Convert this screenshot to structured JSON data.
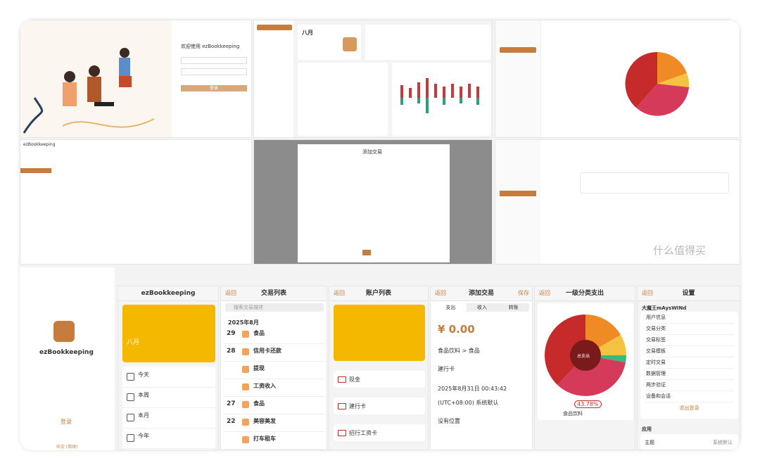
{
  "top_panels": {
    "login_title": "欢迎使用 ezBookkeeping",
    "login_button": "登录",
    "month": "八月",
    "dialog_title": "添加交易",
    "brand": "ezBookkeeping"
  },
  "login_screen": {
    "app_name": "ezBookkeeping",
    "login": "登录",
    "language": "中文 (简体)"
  },
  "home_screen": {
    "title": "ezBookkeeping",
    "month": "八月",
    "items": [
      "今天",
      "本周",
      "本月",
      "今年"
    ]
  },
  "transactions_screen": {
    "back": "返回",
    "title": "交易列表",
    "search": "搜索交易描述",
    "month": "2025年8月",
    "rows": [
      {
        "day": 29,
        "name": "食品"
      },
      {
        "day": 28,
        "name": "信用卡还款"
      },
      {
        "day": null,
        "name": "提现"
      },
      {
        "day": null,
        "name": "工资收入"
      },
      {
        "day": 27,
        "name": "食品"
      },
      {
        "day": 22,
        "name": "美容美发"
      },
      {
        "day": null,
        "name": "打车租车"
      }
    ]
  },
  "accounts_screen": {
    "back": "返回",
    "title": "账户列表",
    "accounts": [
      "现金",
      "建行卡",
      "招行工资卡"
    ]
  },
  "add_screen": {
    "back": "返回",
    "title": "添加交易",
    "save": "保存",
    "tabs": [
      "支出",
      "收入",
      "转账"
    ],
    "amount": "¥ 0.00",
    "category": "食品饮料 > 食品",
    "account": "建行卡",
    "time": "2025年8月31日 00:43:42",
    "timezone": "(UTC+08:00) 系统默认",
    "location": "没有位置"
  },
  "chart_screen": {
    "back": "返回",
    "title": "一级分类支出",
    "center": "总支出",
    "percent": "43.78%",
    "category": "食品饮料"
  },
  "settings_screen": {
    "back": "返回",
    "title": "设置",
    "user": "大魔王mAysWINd",
    "items": [
      "用户信息",
      "交易分类",
      "交易标签",
      "交易模板",
      "定时交易",
      "数据管理",
      "两步验证",
      "设备和会话"
    ],
    "logout": "退出登录",
    "section": "应用",
    "theme": "主题",
    "theme_value": "系统默认"
  },
  "watermark": "什么值得买"
}
